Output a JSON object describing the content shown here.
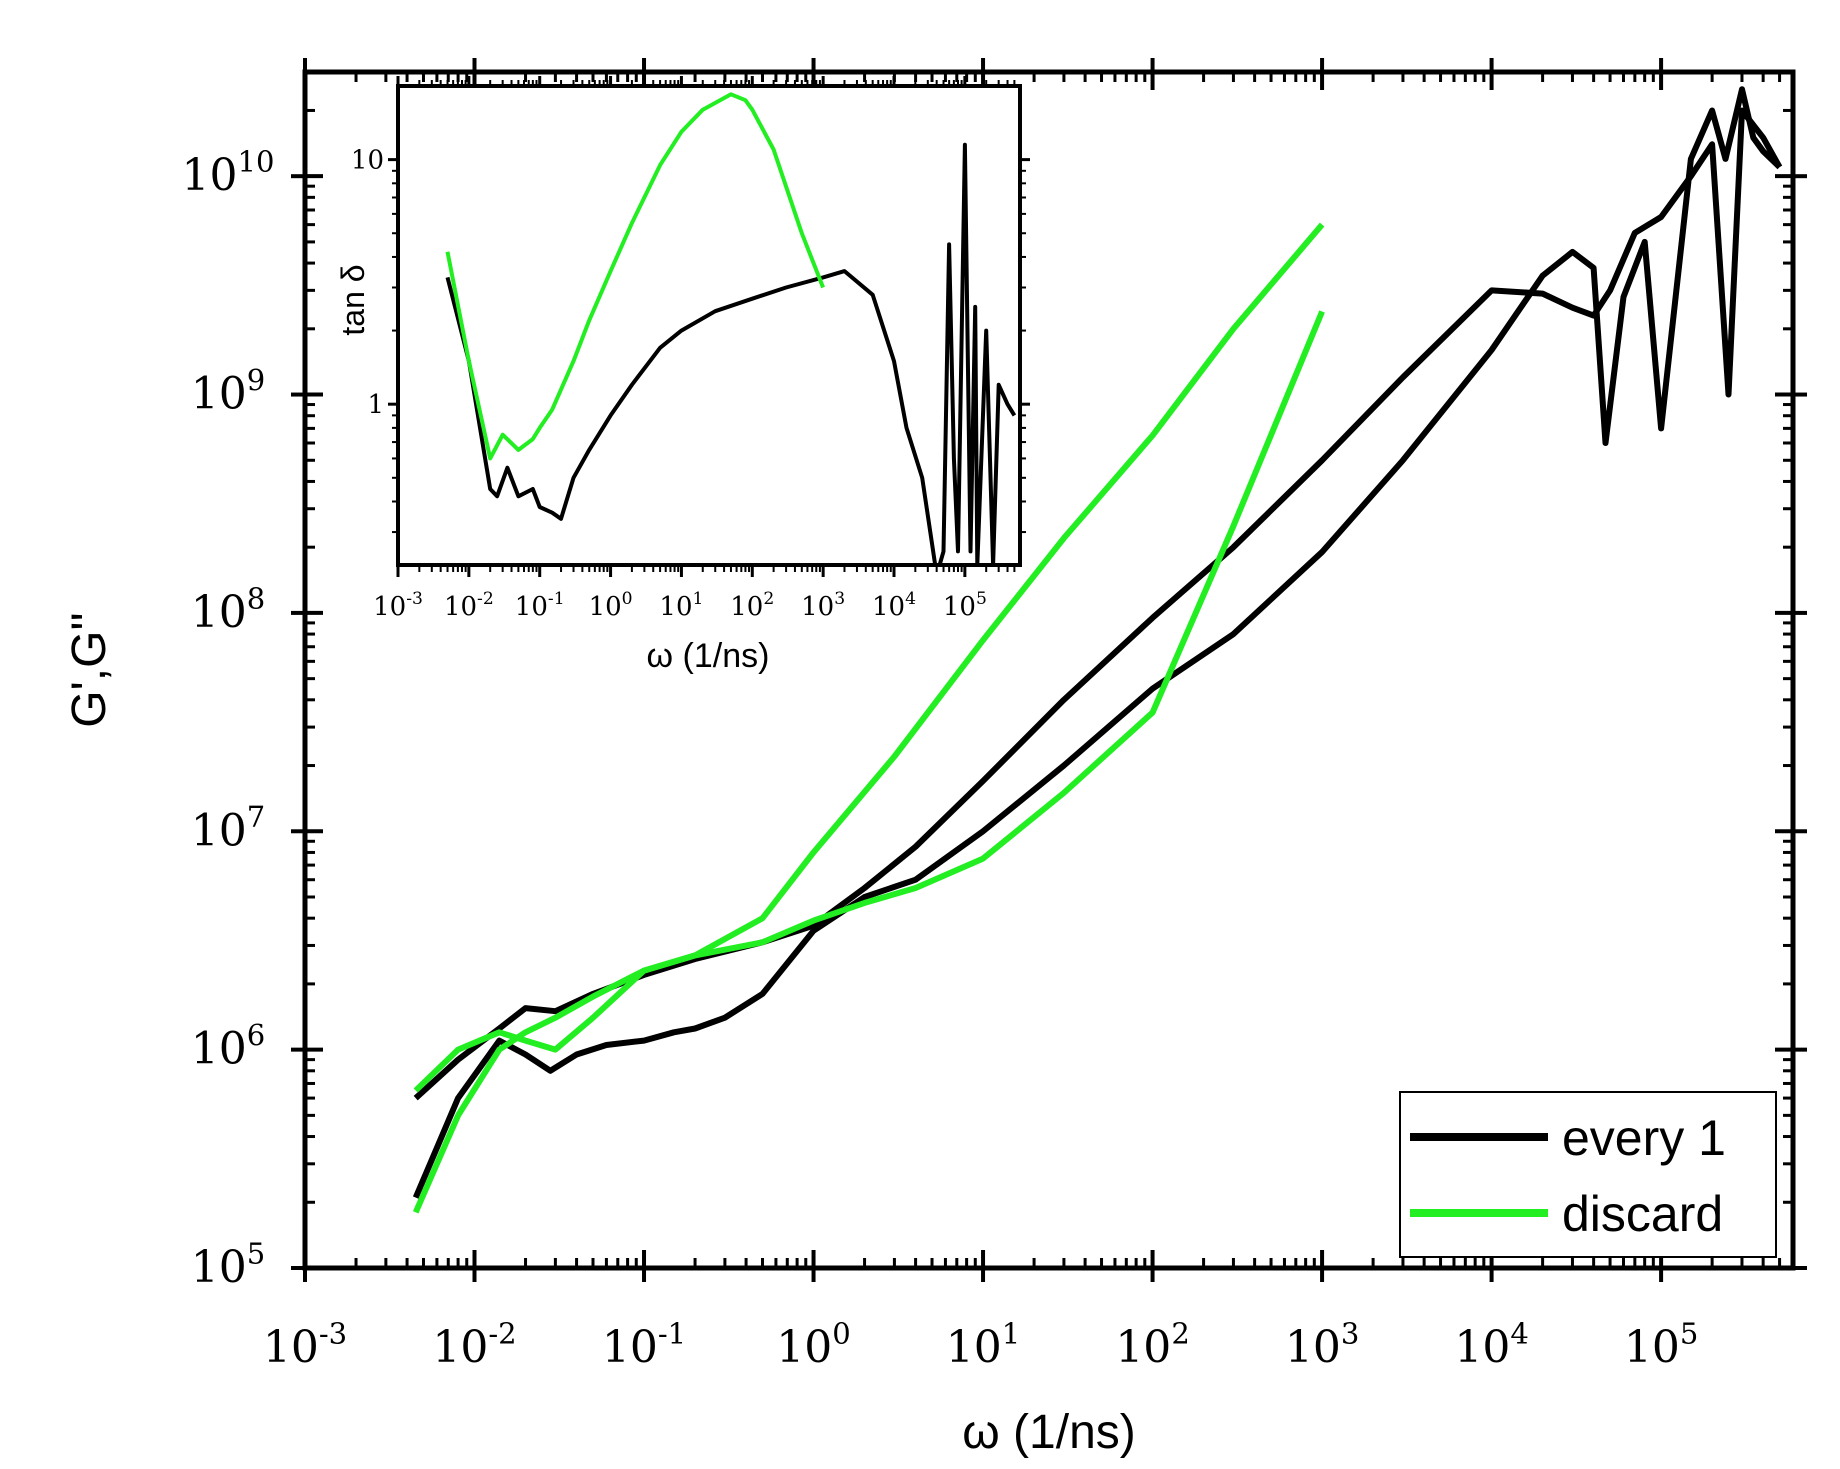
{
  "colors": {
    "every1": "#000000",
    "discard": "#22ee22",
    "axis": "#000000",
    "background": "#ffffff"
  },
  "chart_data": [
    {
      "id": "main",
      "type": "line",
      "xscale": "log",
      "yscale": "log",
      "xlim": [
        0.001,
        600000
      ],
      "ylim": [
        100000,
        30000000000
      ],
      "xlabel": "ω (1/ns)",
      "ylabel": "G',G''",
      "xtick_exponents": [
        "-3",
        "-2",
        "-1",
        "0",
        "1",
        "2",
        "3",
        "4",
        "5"
      ],
      "ytick_exponents": [
        "5",
        "6",
        "7",
        "8",
        "9",
        "10"
      ],
      "tick_base": "10",
      "legend": {
        "position": "bottom-right",
        "entries": [
          "every 1",
          "discard"
        ]
      },
      "series": [
        {
          "name": "every 1 G'",
          "legend": "every 1",
          "color": "#000000",
          "x": [
            0.0045,
            0.008,
            0.014,
            0.02,
            0.028,
            0.04,
            0.06,
            0.1,
            0.15,
            0.2,
            0.3,
            0.5,
            1,
            2,
            4,
            10,
            30,
            100,
            300,
            1000,
            3000,
            10000,
            20000,
            30000,
            40000,
            47000,
            60000,
            80000,
            100000,
            150000,
            200000,
            240000,
            300000,
            350000,
            400000,
            500000
          ],
          "y": [
            210000,
            600000,
            1100000,
            950000,
            800000,
            950000,
            1050000,
            1100000,
            1200000,
            1250000,
            1400000,
            1800000,
            3500000,
            5000000,
            6000000,
            10000000,
            20000000,
            45000000,
            80000000,
            190000000,
            500000000,
            1600000000,
            3500000000,
            4500000000,
            3800000000,
            600000000,
            2800000000,
            5000000000,
            700000000,
            12000000000,
            20000000000,
            12000000000,
            25000000000,
            15000000000,
            13000000000,
            11000000000
          ]
        },
        {
          "name": "every 1 G''",
          "legend": "every 1",
          "color": "#000000",
          "x": [
            0.0045,
            0.008,
            0.014,
            0.02,
            0.03,
            0.05,
            0.1,
            0.2,
            0.5,
            1,
            2,
            4,
            10,
            30,
            100,
            300,
            1000,
            3000,
            10000,
            20000,
            30000,
            40000,
            50000,
            70000,
            100000,
            150000,
            200000,
            250000,
            300000,
            400000,
            500000
          ],
          "y": [
            600000,
            900000,
            1250000,
            1550000,
            1500000,
            1800000,
            2200000,
            2600000,
            3100000,
            3700000,
            5500000,
            8500000,
            17000000,
            40000000,
            95000000,
            200000000,
            500000000,
            1200000000,
            3000000000,
            2900000000,
            2500000000,
            2300000000,
            3000000000,
            5500000000,
            6500000000,
            10000000000,
            14000000000,
            1000000000,
            20000000000,
            15000000000,
            11000000000
          ]
        },
        {
          "name": "discard G'",
          "legend": "discard",
          "color": "#22ee22",
          "x": [
            0.0045,
            0.008,
            0.014,
            0.02,
            0.03,
            0.05,
            0.1,
            0.2,
            0.5,
            1,
            2,
            4,
            10,
            30,
            100,
            300,
            1000
          ],
          "y": [
            180000,
            500000,
            1000000,
            1200000,
            1400000,
            1750000,
            2300000,
            2700000,
            3100000,
            3900000,
            4700000,
            5500000,
            7500000,
            15000000,
            35000000,
            250000000,
            2400000000
          ]
        },
        {
          "name": "discard G''",
          "legend": "discard",
          "color": "#22ee22",
          "x": [
            0.0045,
            0.008,
            0.014,
            0.02,
            0.03,
            0.05,
            0.1,
            0.2,
            0.5,
            1,
            3,
            10,
            30,
            100,
            300,
            1000
          ],
          "y": [
            650000,
            1000000,
            1200000,
            1100000,
            1000000,
            1400000,
            2300000,
            2700000,
            4000000,
            8000000,
            22000000,
            75000000,
            220000000,
            650000000,
            2000000000,
            6000000000
          ]
        }
      ]
    },
    {
      "id": "inset",
      "type": "line",
      "xscale": "log",
      "yscale": "log",
      "xlim": [
        0.001,
        600000
      ],
      "ylim": [
        0.22,
        20
      ],
      "xlabel": "ω (1/ns)",
      "ylabel": "tan δ",
      "xtick_exponents": [
        "-3",
        "-2",
        "-1",
        "0",
        "1",
        "2",
        "3",
        "4",
        "5"
      ],
      "tick_base": "10",
      "ytick_labels": [
        "1",
        "10"
      ],
      "ytick_values": [
        1,
        10
      ],
      "series": [
        {
          "name": "every 1",
          "color": "#000000",
          "x": [
            0.005,
            0.01,
            0.02,
            0.025,
            0.035,
            0.05,
            0.08,
            0.1,
            0.15,
            0.2,
            0.3,
            0.5,
            1,
            2,
            5,
            10,
            30,
            100,
            300,
            1000,
            2000,
            5000,
            10000,
            15000,
            25000,
            40000,
            50000,
            60000,
            70000,
            80000,
            100000,
            120000,
            140000,
            150000,
            200000,
            250000,
            300000,
            400000,
            500000
          ],
          "y": [
            3.3,
            1.5,
            0.45,
            0.42,
            0.55,
            0.42,
            0.45,
            0.38,
            0.36,
            0.34,
            0.5,
            0.65,
            0.9,
            1.2,
            1.7,
            2.0,
            2.4,
            2.7,
            3.0,
            3.3,
            3.5,
            2.8,
            1.5,
            0.8,
            0.5,
            0.2,
            0.25,
            4.5,
            0.6,
            0.25,
            11.5,
            0.25,
            2.5,
            0.22,
            2.0,
            0.22,
            1.2,
            1.0,
            0.9
          ]
        },
        {
          "name": "discard",
          "color": "#22ee22",
          "x": [
            0.005,
            0.01,
            0.02,
            0.03,
            0.05,
            0.08,
            0.1,
            0.15,
            0.3,
            0.5,
            1,
            2,
            5,
            10,
            20,
            50,
            80,
            100,
            200,
            500,
            1000
          ],
          "y": [
            4.2,
            1.5,
            0.6,
            0.75,
            0.65,
            0.72,
            0.8,
            0.95,
            1.5,
            2.2,
            3.5,
            5.5,
            9.5,
            13,
            16,
            18.5,
            17.5,
            16,
            11,
            5,
            3
          ]
        }
      ]
    }
  ]
}
